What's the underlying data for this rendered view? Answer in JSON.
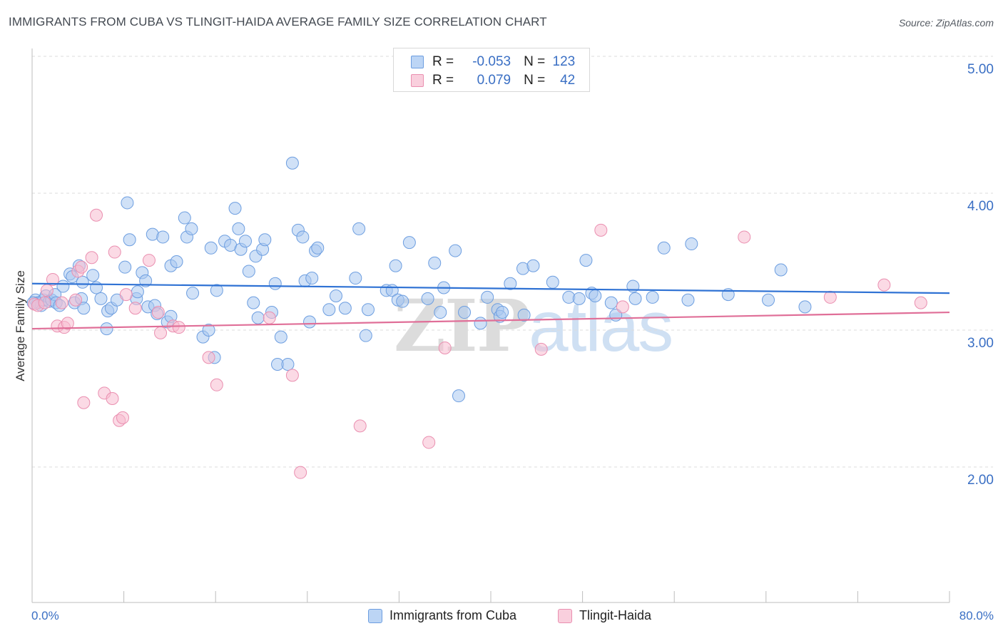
{
  "header": {
    "title": "IMMIGRANTS FROM CUBA VS TLINGIT-HAIDA AVERAGE FAMILY SIZE CORRELATION CHART",
    "source": "Source: ZipAtlas.com"
  },
  "watermark": {
    "zip": "ZIP",
    "atlas": "atlas"
  },
  "legend_top": {
    "rows": [
      {
        "r_label": "R =",
        "r_value": "-0.053",
        "n_label": "N =",
        "n_value": "123"
      },
      {
        "r_label": "R =",
        "r_value": "0.079",
        "n_label": "N =",
        "n_value": "42"
      }
    ]
  },
  "legend_bottom": {
    "items": [
      {
        "label": "Immigrants from Cuba"
      },
      {
        "label": "Tlingit-Haida"
      }
    ]
  },
  "colors": {
    "blue_fill": "#a9c8f0",
    "blue_stroke": "#6d9ee0",
    "blue_line": "#2f72d4",
    "pink_fill": "#f7bcd0",
    "pink_stroke": "#ea8fb0",
    "pink_line": "#e06f98",
    "axis_label": "#3a6fc4",
    "grid": "#dddddd"
  },
  "chart_data": {
    "type": "scatter",
    "title": "IMMIGRANTS FROM CUBA VS TLINGIT-HAIDA AVERAGE FAMILY SIZE CORRELATION CHART",
    "xlabel": "",
    "ylabel": "Average Family Size",
    "xlim": [
      0,
      80
    ],
    "ylim": [
      1.0,
      5.1
    ],
    "x_tick_labels": [
      "0.0%",
      "80.0%"
    ],
    "y_ticks": [
      2.0,
      3.0,
      4.0,
      5.0
    ],
    "y_tick_labels": [
      "2.00",
      "3.00",
      "4.00",
      "5.00"
    ],
    "grid": "horizontal dashed",
    "legend": "top-center",
    "series": [
      {
        "name": "Immigrants from Cuba",
        "color": "#6d9ee0",
        "r": -0.053,
        "n": 123,
        "trend": {
          "x": [
            0,
            80
          ],
          "y": [
            3.34,
            3.27
          ]
        },
        "points": [
          [
            0.3,
            3.22
          ],
          [
            0.5,
            3.2
          ],
          [
            0.8,
            3.18
          ],
          [
            1.0,
            3.22
          ],
          [
            1.2,
            3.25
          ],
          [
            1.5,
            3.21
          ],
          [
            1.7,
            3.22
          ],
          [
            2.0,
            3.26
          ],
          [
            2.1,
            3.2
          ],
          [
            2.4,
            3.18
          ],
          [
            2.7,
            3.32
          ],
          [
            3.3,
            3.41
          ],
          [
            3.5,
            3.39
          ],
          [
            3.7,
            3.2
          ],
          [
            4.1,
            3.47
          ],
          [
            4.3,
            3.23
          ],
          [
            4.4,
            3.35
          ],
          [
            4.5,
            3.16
          ],
          [
            5.3,
            3.4
          ],
          [
            5.6,
            3.31
          ],
          [
            6.0,
            3.23
          ],
          [
            6.5,
            3.01
          ],
          [
            6.6,
            3.14
          ],
          [
            6.9,
            3.16
          ],
          [
            7.4,
            3.22
          ],
          [
            8.1,
            3.46
          ],
          [
            8.3,
            3.93
          ],
          [
            8.5,
            3.66
          ],
          [
            9.1,
            3.23
          ],
          [
            9.2,
            3.28
          ],
          [
            9.6,
            3.42
          ],
          [
            9.9,
            3.36
          ],
          [
            10.1,
            3.17
          ],
          [
            10.5,
            3.7
          ],
          [
            10.7,
            3.18
          ],
          [
            10.9,
            3.12
          ],
          [
            11.4,
            3.68
          ],
          [
            11.8,
            3.06
          ],
          [
            12.1,
            3.47
          ],
          [
            12.1,
            3.1
          ],
          [
            12.6,
            3.5
          ],
          [
            13.3,
            3.82
          ],
          [
            13.5,
            3.68
          ],
          [
            13.9,
            3.74
          ],
          [
            14.0,
            3.27
          ],
          [
            14.9,
            2.95
          ],
          [
            15.4,
            3.0
          ],
          [
            15.6,
            3.6
          ],
          [
            15.9,
            2.8
          ],
          [
            16.1,
            3.29
          ],
          [
            16.8,
            3.65
          ],
          [
            17.3,
            3.62
          ],
          [
            17.7,
            3.89
          ],
          [
            18.0,
            3.74
          ],
          [
            18.2,
            3.59
          ],
          [
            18.6,
            3.65
          ],
          [
            18.9,
            3.43
          ],
          [
            19.3,
            3.2
          ],
          [
            19.5,
            3.54
          ],
          [
            19.7,
            3.09
          ],
          [
            20.1,
            3.59
          ],
          [
            20.3,
            3.66
          ],
          [
            20.9,
            3.13
          ],
          [
            21.2,
            3.34
          ],
          [
            21.4,
            2.75
          ],
          [
            21.7,
            2.95
          ],
          [
            22.3,
            2.75
          ],
          [
            22.7,
            4.22
          ],
          [
            23.2,
            3.73
          ],
          [
            23.6,
            3.68
          ],
          [
            23.8,
            3.36
          ],
          [
            24.2,
            3.06
          ],
          [
            24.4,
            3.38
          ],
          [
            24.7,
            3.58
          ],
          [
            24.9,
            3.6
          ],
          [
            25.9,
            3.15
          ],
          [
            26.5,
            3.25
          ],
          [
            27.3,
            3.16
          ],
          [
            28.2,
            3.38
          ],
          [
            28.5,
            3.74
          ],
          [
            29.1,
            2.96
          ],
          [
            29.3,
            3.15
          ],
          [
            30.9,
            3.29
          ],
          [
            31.4,
            3.29
          ],
          [
            31.7,
            3.47
          ],
          [
            31.9,
            3.22
          ],
          [
            32.3,
            3.21
          ],
          [
            32.9,
            3.64
          ],
          [
            34.5,
            3.23
          ],
          [
            35.1,
            3.49
          ],
          [
            35.6,
            3.13
          ],
          [
            35.9,
            3.31
          ],
          [
            36.9,
            3.58
          ],
          [
            37.2,
            2.52
          ],
          [
            37.7,
            3.13
          ],
          [
            39.1,
            3.05
          ],
          [
            39.7,
            3.24
          ],
          [
            40.6,
            3.15
          ],
          [
            40.8,
            3.1
          ],
          [
            41.0,
            3.13
          ],
          [
            41.7,
            3.34
          ],
          [
            42.8,
            3.45
          ],
          [
            42.9,
            3.11
          ],
          [
            43.7,
            3.47
          ],
          [
            45.4,
            3.35
          ],
          [
            46.8,
            3.24
          ],
          [
            47.7,
            3.23
          ],
          [
            48.3,
            3.51
          ],
          [
            48.8,
            3.27
          ],
          [
            49.1,
            3.25
          ],
          [
            50.5,
            3.2
          ],
          [
            50.9,
            3.11
          ],
          [
            52.4,
            3.32
          ],
          [
            52.6,
            3.23
          ],
          [
            54.1,
            3.24
          ],
          [
            55.1,
            3.6
          ],
          [
            57.2,
            3.22
          ],
          [
            57.5,
            3.63
          ],
          [
            60.7,
            3.26
          ],
          [
            64.2,
            3.22
          ],
          [
            65.3,
            3.44
          ],
          [
            67.4,
            3.17
          ],
          [
            0.1,
            3.2
          ]
        ]
      },
      {
        "name": "Tlingit-Haida",
        "color": "#ea8fb0",
        "r": 0.079,
        "n": 42,
        "trend": {
          "x": [
            0,
            80
          ],
          "y": [
            3.01,
            3.13
          ]
        },
        "points": [
          [
            0.2,
            3.19
          ],
          [
            0.5,
            3.18
          ],
          [
            1.1,
            3.2
          ],
          [
            1.3,
            3.29
          ],
          [
            1.8,
            3.37
          ],
          [
            2.2,
            3.03
          ],
          [
            2.6,
            3.2
          ],
          [
            2.8,
            3.02
          ],
          [
            3.1,
            3.05
          ],
          [
            4.0,
            3.43
          ],
          [
            4.3,
            3.46
          ],
          [
            4.5,
            2.47
          ],
          [
            5.2,
            3.53
          ],
          [
            5.6,
            3.84
          ],
          [
            6.3,
            2.54
          ],
          [
            7.0,
            2.5
          ],
          [
            7.2,
            3.57
          ],
          [
            7.6,
            2.34
          ],
          [
            7.9,
            2.36
          ],
          [
            8.2,
            3.26
          ],
          [
            9.0,
            3.16
          ],
          [
            10.2,
            3.51
          ],
          [
            11.0,
            3.13
          ],
          [
            11.2,
            2.98
          ],
          [
            12.3,
            3.03
          ],
          [
            12.8,
            3.02
          ],
          [
            15.4,
            2.8
          ],
          [
            16.1,
            2.6
          ],
          [
            20.7,
            3.09
          ],
          [
            22.7,
            2.67
          ],
          [
            23.4,
            1.96
          ],
          [
            28.6,
            2.3
          ],
          [
            34.6,
            2.18
          ],
          [
            36.0,
            2.87
          ],
          [
            44.4,
            2.86
          ],
          [
            49.6,
            3.73
          ],
          [
            51.5,
            3.17
          ],
          [
            62.1,
            3.68
          ],
          [
            69.6,
            3.24
          ],
          [
            74.3,
            3.33
          ],
          [
            77.5,
            3.2
          ],
          [
            3.8,
            3.22
          ]
        ]
      }
    ]
  }
}
